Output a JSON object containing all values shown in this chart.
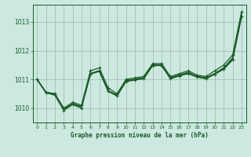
{
  "background_color": "#cce8e0",
  "plot_bg_color": "#cce8e0",
  "grid_color": "#99bbaa",
  "line_color": "#1a5c28",
  "marker_color": "#1a5c28",
  "xlabel": "Graphe pression niveau de la mer (hPa)",
  "ylim": [
    1009.5,
    1013.6
  ],
  "xlim": [
    -0.5,
    23.5
  ],
  "yticks": [
    1010,
    1011,
    1012,
    1013
  ],
  "xticks": [
    0,
    1,
    2,
    3,
    4,
    5,
    6,
    7,
    8,
    9,
    10,
    11,
    12,
    13,
    14,
    15,
    16,
    17,
    18,
    19,
    20,
    21,
    22,
    23
  ],
  "series": [
    {
      "y": [
        1011.0,
        1010.55,
        1010.5,
        1010.0,
        1010.2,
        1010.1,
        1011.3,
        1011.4,
        1010.7,
        1010.5,
        1011.0,
        1011.05,
        1011.1,
        1011.55,
        1011.55,
        1011.1,
        1011.2,
        1011.3,
        1011.15,
        1011.1,
        1011.3,
        1011.5,
        1011.85,
        1013.35
      ],
      "marker": true,
      "lw": 0.9
    },
    {
      "y": [
        1011.0,
        1010.55,
        1010.5,
        1009.95,
        1010.15,
        1010.05,
        1011.2,
        1011.3,
        1010.6,
        1010.45,
        1010.95,
        1011.0,
        1011.05,
        1011.5,
        1011.5,
        1011.05,
        1011.15,
        1011.25,
        1011.1,
        1011.05,
        1011.2,
        1011.4,
        1011.75,
        1013.3
      ],
      "marker": false,
      "lw": 0.9
    },
    {
      "y": [
        1011.0,
        1010.55,
        1010.48,
        1009.95,
        1010.15,
        1010.05,
        1011.2,
        1011.3,
        1010.6,
        1010.45,
        1010.95,
        1011.0,
        1011.05,
        1011.5,
        1011.5,
        1011.05,
        1011.15,
        1011.22,
        1011.1,
        1011.05,
        1011.2,
        1011.4,
        1011.72,
        1013.25
      ],
      "marker": false,
      "lw": 0.9
    },
    {
      "y": [
        1011.0,
        1010.55,
        1010.48,
        1009.95,
        1010.15,
        1010.05,
        1011.2,
        1011.3,
        1010.6,
        1010.45,
        1010.95,
        1011.0,
        1011.05,
        1011.5,
        1011.5,
        1011.05,
        1011.15,
        1011.22,
        1011.1,
        1011.05,
        1011.2,
        1011.38,
        1011.7,
        1013.2
      ],
      "marker": false,
      "lw": 0.9
    },
    {
      "y": [
        1011.0,
        1010.53,
        1010.45,
        1009.92,
        1010.12,
        1010.0,
        1011.18,
        1011.28,
        1010.58,
        1010.42,
        1010.92,
        1010.98,
        1011.02,
        1011.48,
        1011.48,
        1011.02,
        1011.12,
        1011.2,
        1011.08,
        1011.02,
        1011.18,
        1011.35,
        1011.68,
        1013.18
      ],
      "marker": true,
      "lw": 0.9
    }
  ]
}
